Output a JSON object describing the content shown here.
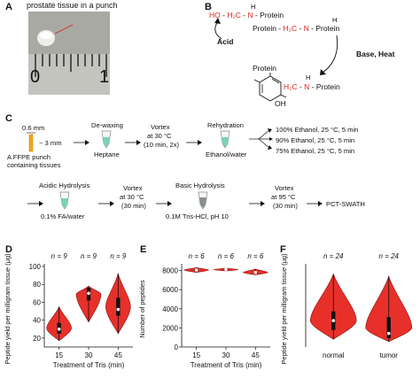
{
  "panels": {
    "A": {
      "letter": "A",
      "caption": "prostate tissue in a punch",
      "ruler_labels": [
        "0",
        "1"
      ]
    },
    "B": {
      "letter": "B",
      "acid_reactant": {
        "ho": "HO",
        "dash1": " - ",
        "h2c": "H₂C",
        "dash2": " - ",
        "n": "N",
        "rest": " - Protein",
        "h": "H"
      },
      "acid_label": "Acid",
      "product": {
        "left": "Protein - ",
        "h2c": "H₂C",
        "dash": " - ",
        "n": "N",
        "rest": " - Protein",
        "h": "H"
      },
      "base_label": "Base, Heat",
      "bottom": {
        "protein": "Protein",
        "h2c": "H₂C",
        "dash": " - ",
        "n": "N",
        "rest": " - Protein",
        "h": "H",
        "oh": "OH"
      }
    },
    "C": {
      "letter": "C",
      "punch_size": "0.6 mm",
      "punch_length": "~ 3 mm",
      "punch_caption_1": "A FFPE punch",
      "punch_caption_2": "containing tissues",
      "dewax_title": "De-waxing",
      "dewax_solvent": "Heptane",
      "vortex1_l1": "Vortex",
      "vortex1_l2": "at 30 °C",
      "vortex1_l3": "(10 min, 2x)",
      "rehyd_title": "Rehydration",
      "rehyd_solvent": "Ethanol/water",
      "ethanol_steps": [
        "100% Ethanol, 25 °C, 5 min",
        "90% Ethanol, 25 °C, 5 min",
        "75% Ethanol, 25 °C, 5 min"
      ],
      "acid_title": "Acidic Hydrolysis",
      "acid_solvent": "0.1% FA/water",
      "vortex2_l1": "Vortex",
      "vortex2_l2": "at 30 °C",
      "vortex2_l3": "(30 min)",
      "base_title": "Basic Hydrolysis",
      "base_solvent": "0.1M Tris-HCl, pH 10",
      "vortex3_l1": "Vortex",
      "vortex3_l2": "at 95 °C",
      "vortex3_l3": "(30 min)",
      "final": "PCT-SWATH"
    },
    "D": {
      "letter": "D"
    },
    "E": {
      "letter": "E"
    },
    "F": {
      "letter": "F"
    }
  },
  "chart_data": [
    {
      "type": "violin",
      "panel": "D",
      "categories": [
        "15",
        "30",
        "45"
      ],
      "n_labels": [
        "n = 9",
        "n = 9",
        "n = 9"
      ],
      "medians": [
        30,
        70,
        52
      ],
      "q1": [
        25,
        62,
        45
      ],
      "q3": [
        37,
        76,
        65
      ],
      "min": [
        17,
        38,
        25
      ],
      "max": [
        55,
        78,
        92
      ],
      "ylim": [
        10,
        103
      ],
      "yticks": [
        20,
        40,
        60,
        80,
        100
      ],
      "ylabel": "Peptide yield per milligram tissue (μg)",
      "xlabel": "Treatment of Tris (min)",
      "color": "#e8302a"
    },
    {
      "type": "violin",
      "panel": "E",
      "categories": [
        "15",
        "30",
        "45"
      ],
      "n_labels": [
        "n = 6",
        "n = 6",
        "n = 6"
      ],
      "medians": [
        8050,
        8100,
        7800
      ],
      "q1": [
        7950,
        8050,
        7700
      ],
      "q3": [
        8150,
        8150,
        7900
      ],
      "min": [
        7800,
        7950,
        7550
      ],
      "max": [
        8300,
        8250,
        8150
      ],
      "ylim": [
        0,
        8700
      ],
      "yticks": [
        0,
        2000,
        4000,
        6000,
        8000
      ],
      "ylabel": "Number of peptides",
      "xlabel": "Treatment of Tris (min)",
      "color": "#e8302a"
    },
    {
      "type": "violin",
      "panel": "F",
      "categories": [
        "normal",
        "tumor"
      ],
      "n_labels": [
        "n = 24",
        "n = 24"
      ],
      "medians": [
        100,
        45
      ],
      "q1": [
        60,
        25
      ],
      "q3": [
        140,
        115
      ],
      "min": [
        20,
        10
      ],
      "max": [
        300,
        290
      ],
      "ylabel": "Peptide yield per milligram tissue (μg)",
      "color": "#e8302a"
    }
  ]
}
